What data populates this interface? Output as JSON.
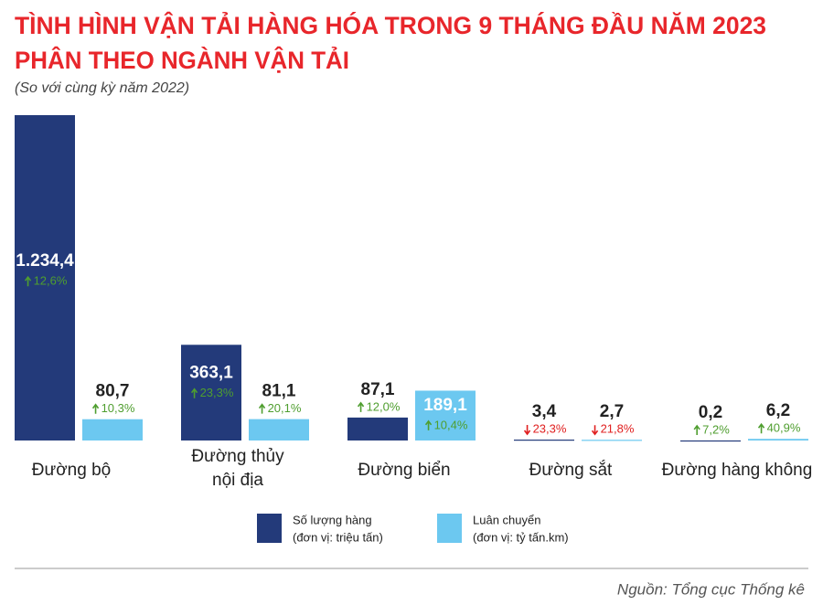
{
  "chart_data": {
    "type": "bar",
    "title": [
      "TÌNH HÌNH VẬN TẢI HÀNG HÓA TRONG 9 THÁNG ĐẦU NĂM 2023",
      "PHÂN THEO NGÀNH VẬN TẢI"
    ],
    "subtitle": "(So với cùng kỳ năm 2022)",
    "categories": [
      "Đường bộ",
      "Đường thủy\nnội địa",
      "Đường biển",
      "Đường sắt",
      "Đường hàng không"
    ],
    "series": [
      {
        "name": "Số lượng hàng",
        "unit": "(đơn vị: triệu tấn)",
        "color": "#233a7a",
        "values": [
          1234.4,
          363.1,
          87.1,
          3.4,
          0.2
        ],
        "value_labels": [
          "1.234,4",
          "363,1",
          "87,1",
          "3,4",
          "0,2"
        ],
        "changes": [
          12.6,
          23.3,
          12.0,
          -23.3,
          7.2
        ],
        "change_labels": [
          "12,6%",
          "23,3%",
          "12,0%",
          "23,3%",
          "7,2%"
        ]
      },
      {
        "name": "Luân chuyển",
        "unit": "(đơn vị: tỷ tấn.km)",
        "color": "#6cc8f0",
        "values": [
          80.7,
          81.1,
          189.1,
          2.7,
          6.2
        ],
        "value_labels": [
          "80,7",
          "81,1",
          "189,1",
          "2,7",
          "6,2"
        ],
        "changes": [
          10.3,
          20.1,
          10.4,
          -21.8,
          40.9
        ],
        "change_labels": [
          "10,3%",
          "20,1%",
          "10,4%",
          "21,8%",
          "40,9%"
        ]
      }
    ],
    "up_color": "#4f9e2f",
    "down_color": "#e02020",
    "source": "Nguồn: Tổng cục Thống kê"
  }
}
